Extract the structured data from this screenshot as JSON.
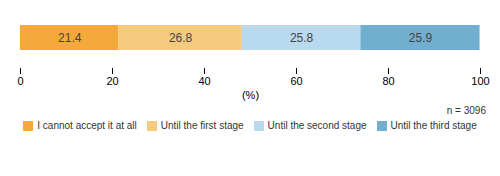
{
  "chart_data": {
    "type": "bar",
    "orientation": "horizontal",
    "stacked": true,
    "categories": [
      null
    ],
    "series": [
      {
        "name": "I cannot accept it at all",
        "color": "#F6A93B",
        "values": [
          21.4
        ]
      },
      {
        "name": "Until the first stage",
        "color": "#F5CA7E",
        "values": [
          26.8
        ]
      },
      {
        "name": "Until the second stage",
        "color": "#B8D9EE",
        "values": [
          25.8
        ]
      },
      {
        "name": "Until the third stage",
        "color": "#72AED0",
        "values": [
          25.9
        ]
      }
    ],
    "xlabel": "(%)",
    "xlim": [
      0,
      100
    ],
    "xticks": [
      0,
      20,
      40,
      60,
      80,
      100
    ],
    "data_labels": true,
    "tick_labels": "x",
    "grid": false,
    "legend": "bottom",
    "annotations": [
      "n = 3096"
    ]
  }
}
